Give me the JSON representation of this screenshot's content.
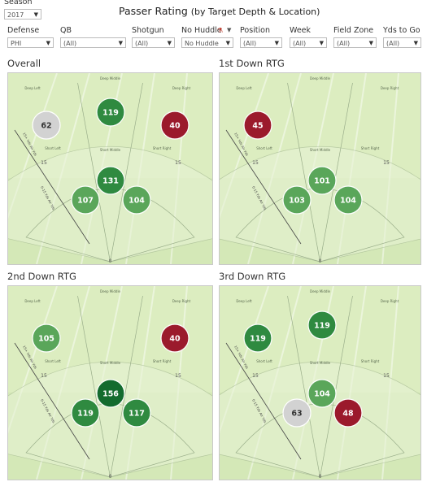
{
  "season": {
    "label": "Season",
    "value": "2017"
  },
  "title": {
    "main": "Passer Rating",
    "sub": "(by Target Depth & Location)"
  },
  "filters": [
    {
      "label": "Defense",
      "value": "PHI"
    },
    {
      "label": "QB",
      "value": "(All)"
    },
    {
      "label": "Shotgun",
      "value": "(All)"
    },
    {
      "label": "No Huddle",
      "value": "No Huddle"
    },
    {
      "label": "Position",
      "value": "(All)"
    },
    {
      "label": "Week",
      "value": "(All)"
    },
    {
      "label": "Field Zone",
      "value": "(All)"
    },
    {
      "label": "Yds to Go",
      "value": "(All)"
    }
  ],
  "zone_labels": {
    "deep_left": "Deep Left",
    "deep_middle": "Deep Middle",
    "deep_right": "Deep Right",
    "short_left": "Short Left",
    "short_middle": "Short Middle",
    "short_right": "Short Right",
    "yard_15": "15",
    "yard_0": "0",
    "axis": "0-15 Yds Air Yds",
    "axis_deep": "15+ Yds Air Yds"
  },
  "colors": {
    "very_high": "#136b2e",
    "high": "#2f8a40",
    "mid": "#5aa65a",
    "neutral": "#d2d2d2",
    "low": "#9b1a2c",
    "field": "#dcedc0"
  },
  "panels": [
    {
      "title": "Overall",
      "ratings": {
        "deep_left": 62,
        "deep_middle": 119,
        "deep_right": 40,
        "short_left": 107,
        "short_middle": 131,
        "short_right": 104
      }
    },
    {
      "title": "1st Down RTG",
      "ratings": {
        "deep_left": 45,
        "deep_middle": null,
        "deep_right": null,
        "short_left": 103,
        "short_middle": 101,
        "short_right": 104
      }
    },
    {
      "title": "2nd Down RTG",
      "ratings": {
        "deep_left": 105,
        "deep_middle": null,
        "deep_right": 40,
        "short_left": 119,
        "short_middle": 156,
        "short_right": 117
      }
    },
    {
      "title": "3rd Down RTG",
      "ratings": {
        "deep_left": 119,
        "deep_middle": 119,
        "deep_right": null,
        "short_left": 63,
        "short_middle": 104,
        "short_right": 48
      }
    }
  ]
}
